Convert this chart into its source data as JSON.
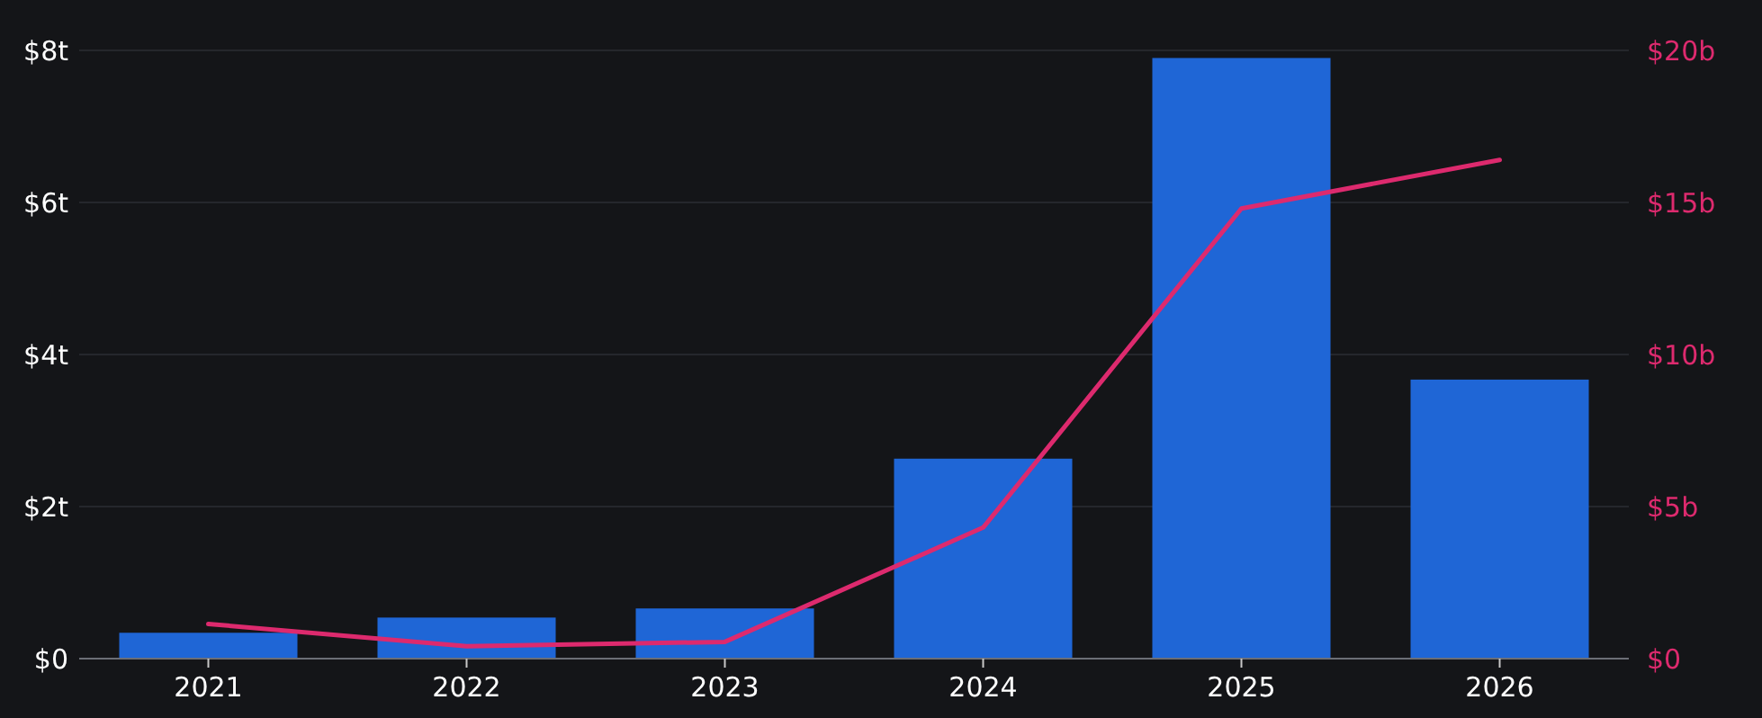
{
  "chart_data": {
    "type": "bar",
    "categories": [
      "2021",
      "2022",
      "2023",
      "2024",
      "2025",
      "2026"
    ],
    "series": [
      {
        "color": "#1f66d6",
        "values": [
          0.34,
          0.54,
          0.66,
          2.63,
          7.9,
          3.67
        ]
      },
      {
        "type": "line",
        "axis": "y2",
        "color": "#dd2a6e",
        "values": [
          1.14,
          0.41,
          0.55,
          4.31,
          14.8,
          16.4
        ]
      }
    ],
    "ylim": [
      0,
      8
    ],
    "yticks": [
      {
        "value": 0,
        "label": "$0"
      },
      {
        "value": 2,
        "label": "$2t"
      },
      {
        "value": 4,
        "label": "$4t"
      },
      {
        "value": 6,
        "label": "$6t"
      },
      {
        "value": 8,
        "label": "$8t"
      }
    ],
    "y2lim": [
      0,
      20
    ],
    "y2ticks": [
      {
        "value": 0,
        "label": "$0"
      },
      {
        "value": 5,
        "label": "$5b"
      },
      {
        "value": 10,
        "label": "$10b"
      },
      {
        "value": 15,
        "label": "$15b"
      },
      {
        "value": 20,
        "label": "$20b"
      }
    ],
    "grid": "y",
    "marker": "none",
    "line_style": "solid"
  }
}
